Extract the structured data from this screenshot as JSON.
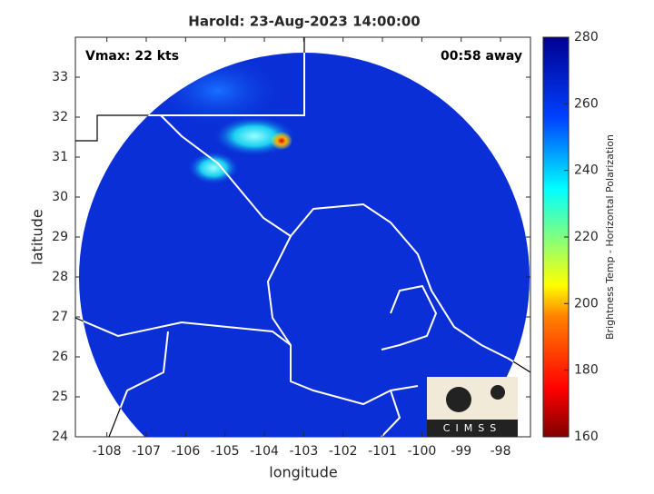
{
  "chart_data": {
    "type": "map",
    "title": "Harold: 23-Aug-2023 14:00:00",
    "annotations": [
      "Vmax: 22 kts",
      "00:58 away"
    ],
    "xlabel": "longitude",
    "ylabel": "latitude",
    "xlim": [
      -108.8,
      -97.24
    ],
    "ylim": [
      24,
      34
    ],
    "xticks": [
      -108,
      -107,
      -106,
      -105,
      -104,
      -103,
      -102,
      -101,
      -100,
      -99,
      -98
    ],
    "yticks": [
      24,
      25,
      26,
      27,
      28,
      29,
      30,
      31,
      32,
      33
    ],
    "colorbar": {
      "label": "Brightness Temp - Horizontal Polarization",
      "lim": [
        160,
        280
      ],
      "ticks": [
        160,
        180,
        200,
        220,
        240,
        260,
        280
      ]
    },
    "logo": "CIMSS"
  }
}
